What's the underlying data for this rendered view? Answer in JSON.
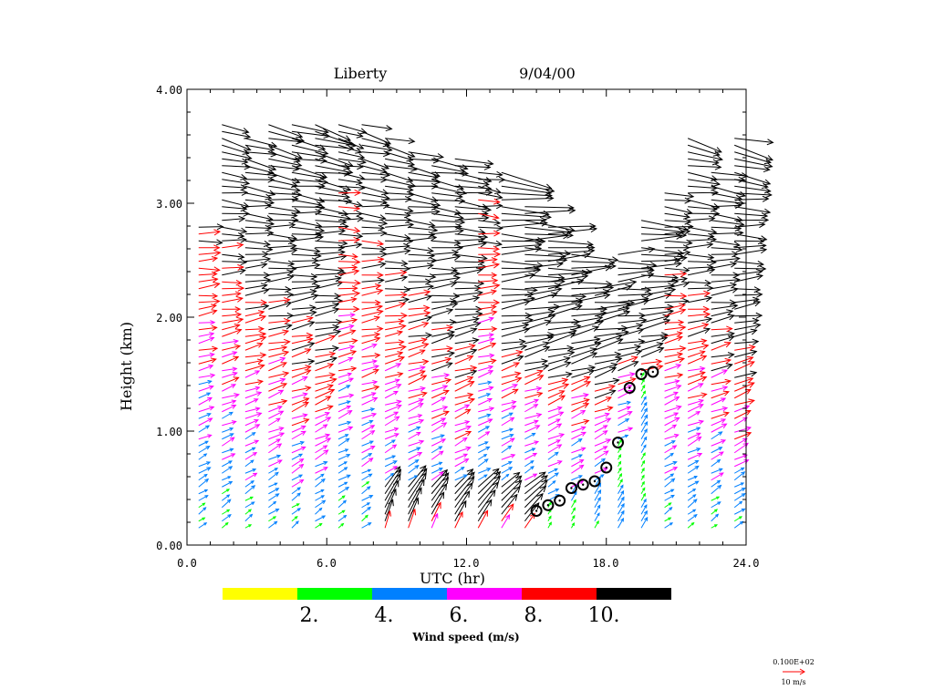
{
  "chart_data": {
    "type": "wind-profile-barbs",
    "title": {
      "station": "Liberty",
      "date": "9/04/00"
    },
    "xlabel": "UTC (hr)",
    "ylabel": "Height (km)",
    "xlim": [
      0,
      24
    ],
    "ylim": [
      0,
      4
    ],
    "x_ticks": [
      0,
      6,
      12,
      18,
      24
    ],
    "x_tick_labels": [
      "0.0",
      "6.0",
      "12.0",
      "18.0",
      "24.0"
    ],
    "y_ticks": [
      0,
      1,
      2,
      3,
      4
    ],
    "y_tick_labels": [
      "0.00",
      "1.00",
      "2.00",
      "3.00",
      "4.00"
    ],
    "colorbar": {
      "label": "Wind speed (m/s)",
      "bins": [
        {
          "max": 2,
          "color": "#ffff00"
        },
        {
          "max": 4,
          "color": "#00ff00"
        },
        {
          "max": 6,
          "color": "#0080ff"
        },
        {
          "max": 8,
          "color": "#ff00ff"
        },
        {
          "max": 10,
          "color": "#ff0000"
        },
        {
          "max": 99,
          "color": "#000000"
        }
      ],
      "tick_labels": [
        "2.",
        "4.",
        "6.",
        "8.",
        "10."
      ]
    },
    "reference_vector": {
      "value_label": "0.100E+02",
      "unit_label": "10 m/s",
      "color": "#ff0000"
    },
    "profiles": [
      {
        "time": 0.5,
        "top_km": 2.8
      },
      {
        "time": 1.5,
        "top_km": 3.7
      },
      {
        "time": 2.5,
        "top_km": 3.6
      },
      {
        "time": 3.5,
        "top_km": 3.7
      },
      {
        "time": 4.5,
        "top_km": 3.7
      },
      {
        "time": 5.5,
        "top_km": 3.7
      },
      {
        "time": 6.5,
        "top_km": 3.7
      },
      {
        "time": 7.5,
        "top_km": 3.7
      },
      {
        "time": 8.5,
        "top_km": 3.6
      },
      {
        "time": 9.5,
        "top_km": 3.5
      },
      {
        "time": 10.5,
        "top_km": 3.4
      },
      {
        "time": 11.5,
        "top_km": 3.4
      },
      {
        "time": 12.5,
        "top_km": 3.3
      },
      {
        "time": 13.5,
        "top_km": 3.3
      },
      {
        "time": 14.5,
        "top_km": 3.0
      },
      {
        "time": 15.5,
        "top_km": 2.8
      },
      {
        "time": 16.5,
        "top_km": 2.6
      },
      {
        "time": 17.5,
        "top_km": 2.3
      },
      {
        "time": 18.5,
        "top_km": 2.6
      },
      {
        "time": 19.5,
        "top_km": 2.9
      },
      {
        "time": 20.5,
        "top_km": 3.1
      },
      {
        "time": 21.5,
        "top_km": 3.6
      },
      {
        "time": 22.5,
        "top_km": 3.3
      },
      {
        "time": 23.5,
        "top_km": 3.6
      }
    ],
    "boundary_layer_heights": [
      {
        "time": 15.0,
        "height_km": 0.3
      },
      {
        "time": 15.5,
        "height_km": 0.35
      },
      {
        "time": 16.0,
        "height_km": 0.39
      },
      {
        "time": 16.5,
        "height_km": 0.5
      },
      {
        "time": 17.0,
        "height_km": 0.53
      },
      {
        "time": 17.5,
        "height_km": 0.56
      },
      {
        "time": 18.0,
        "height_km": 0.68
      },
      {
        "time": 18.5,
        "height_km": 0.9
      },
      {
        "time": 19.0,
        "height_km": 1.38
      },
      {
        "time": 19.5,
        "height_km": 1.5
      },
      {
        "time": 20.0,
        "height_km": 1.52
      }
    ]
  }
}
